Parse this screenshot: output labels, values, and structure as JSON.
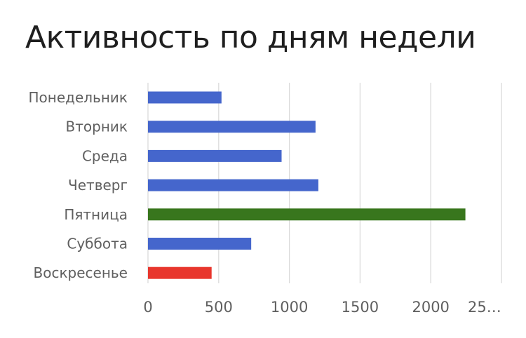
{
  "chart_data": {
    "type": "bar",
    "orientation": "horizontal",
    "title": "Активность по дням недели",
    "xlabel": "",
    "ylabel": "",
    "categories": [
      "Понедельник",
      "Вторник",
      "Среда",
      "Четверг",
      "Пятница",
      "Суббота",
      "Воскресенье"
    ],
    "values": [
      520,
      1185,
      945,
      1205,
      2245,
      730,
      450
    ],
    "bar_colors": [
      "#4566cc",
      "#4566cc",
      "#4566cc",
      "#4566cc",
      "#38761d",
      "#4566cc",
      "#e8362d"
    ],
    "xlim": [
      0,
      2500
    ],
    "x_ticks": [
      "0",
      "500",
      "1000",
      "1500",
      "2000",
      "25…"
    ],
    "x_tick_values": [
      0,
      500,
      1000,
      1500,
      2000,
      2500
    ],
    "grid": true,
    "legend": "none"
  }
}
